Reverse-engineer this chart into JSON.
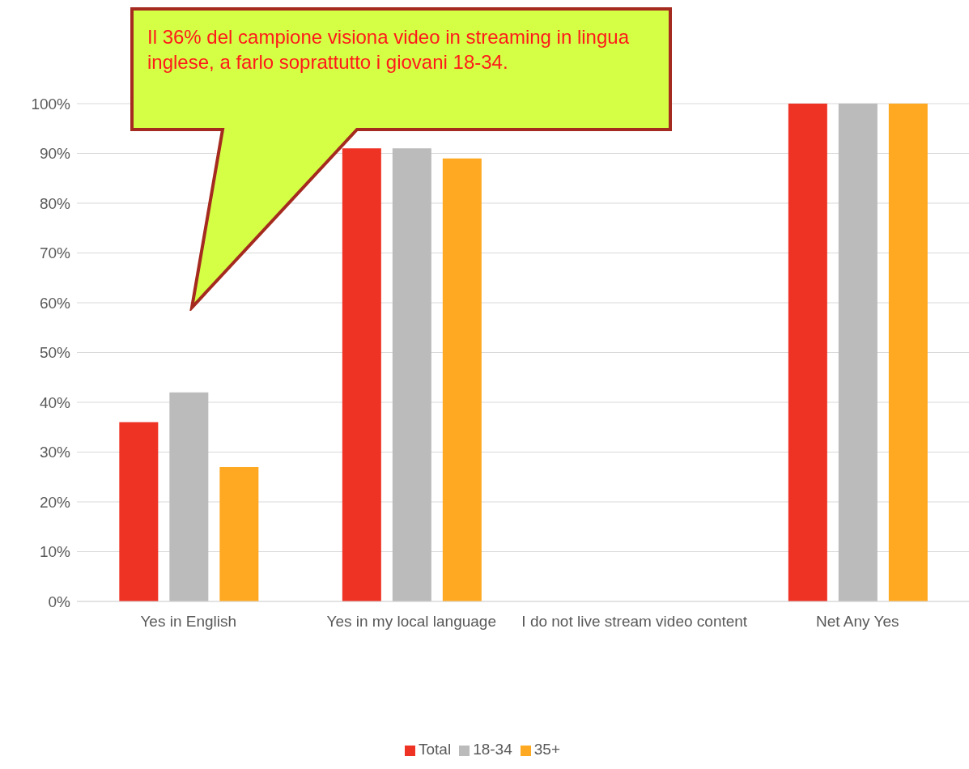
{
  "chart_data": {
    "type": "bar",
    "categories": [
      "Yes in English",
      "Yes in my local language",
      "I do not live stream video content",
      "Net Any Yes"
    ],
    "series": [
      {
        "name": "Total",
        "color": "#ee3224",
        "values": [
          36,
          91,
          null,
          100
        ]
      },
      {
        "name": "18-34",
        "color": "#bbbbbb",
        "values": [
          42,
          91,
          null,
          100
        ]
      },
      {
        "name": "35+",
        "color": "#ffa922",
        "values": [
          27,
          89,
          null,
          100
        ]
      }
    ],
    "ylim": [
      0,
      100
    ],
    "yticks": [
      {
        "value": 0,
        "label": "0%"
      },
      {
        "value": 10,
        "label": "10%"
      },
      {
        "value": 20,
        "label": "20%"
      },
      {
        "value": 30,
        "label": "30%"
      },
      {
        "value": 40,
        "label": "40%"
      },
      {
        "value": 50,
        "label": "50%"
      },
      {
        "value": 60,
        "label": "60%"
      },
      {
        "value": 70,
        "label": "70%"
      },
      {
        "value": 80,
        "label": "80%"
      },
      {
        "value": 90,
        "label": "90%"
      },
      {
        "value": 100,
        "label": "100%"
      }
    ],
    "grid": "y",
    "legend": "bottom",
    "annotations": [
      "Il 36% del campione visiona video in streaming in lingua inglese, a farlo soprattutto i giovani 18-34."
    ]
  }
}
